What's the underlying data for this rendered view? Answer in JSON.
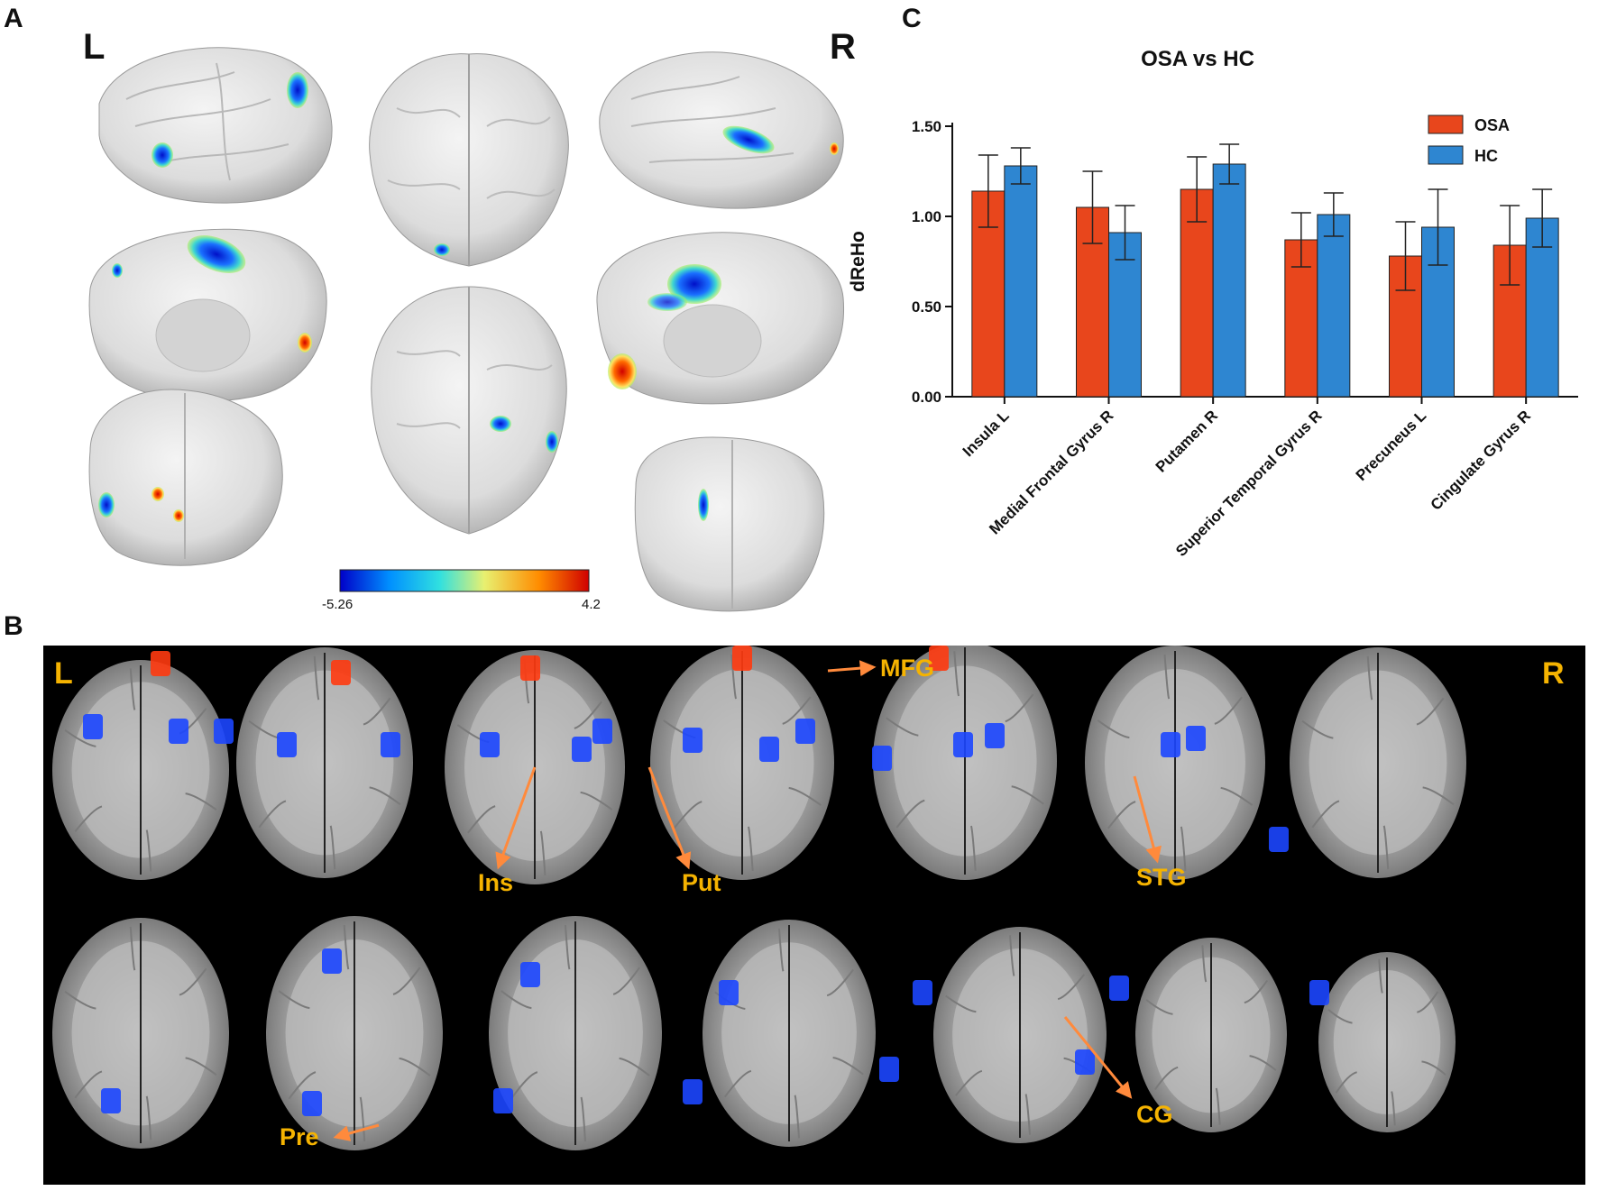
{
  "panels": {
    "a": "A",
    "b": "B",
    "c": "C"
  },
  "panel_a": {
    "left_label": "L",
    "right_label": "R",
    "colorbar": {
      "min_label": "-5.26",
      "max_label": "4.2",
      "colors": [
        "#0000c8",
        "#0090ff",
        "#30e0e0",
        "#e8f070",
        "#ff8c00",
        "#d00000"
      ]
    }
  },
  "panel_b": {
    "left_label": "L",
    "right_label": "R",
    "annotations": {
      "mfg": "MFG",
      "ins": "Ins",
      "put": "Put",
      "stg": "STG",
      "pre": "Pre",
      "cg": "CG"
    },
    "arrow_color": "#ff8a3c",
    "label_color": "#f5b301"
  },
  "chart_data": {
    "type": "bar",
    "title": "OSA vs HC",
    "ylabel": "dReHo",
    "xlabel": "",
    "ylim": [
      0,
      1.5
    ],
    "yticks": [
      "0.00",
      "0.50",
      "1.00",
      "1.50"
    ],
    "categories": [
      "Insula L",
      "Medial Frontal Gyrus R",
      "Putamen R",
      "Superior Temporal Gyrus R",
      "Precuneus L",
      "Cingulate Gyrus R"
    ],
    "series": [
      {
        "name": "OSA",
        "color": "#e8461c",
        "values": [
          1.14,
          1.05,
          1.15,
          0.87,
          0.78,
          0.84
        ],
        "errors": [
          0.2,
          0.2,
          0.18,
          0.15,
          0.19,
          0.22
        ]
      },
      {
        "name": "HC",
        "color": "#2e86d1",
        "values": [
          1.28,
          0.91,
          1.29,
          1.01,
          0.94,
          0.99
        ],
        "errors": [
          0.1,
          0.15,
          0.11,
          0.12,
          0.21,
          0.16
        ]
      }
    ],
    "legend": "top-right",
    "grid": false
  }
}
